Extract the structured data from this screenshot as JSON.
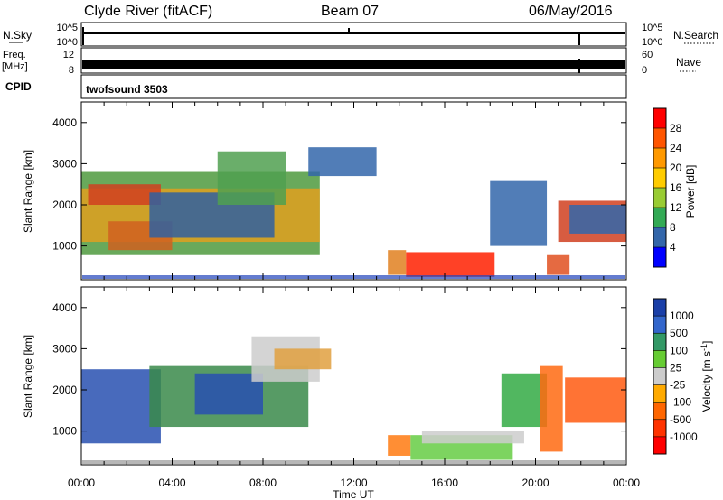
{
  "header": {
    "site": "Clyde River (fitACF)",
    "beam": "Beam 07",
    "date": "06/May/2016"
  },
  "top_panels": {
    "nsky_label": "N.Sky",
    "nsky_ticks": [
      "10^5",
      "10^0"
    ],
    "nsearch_label": "N.Search",
    "nsearch_ticks": [
      "10^5",
      "10^0"
    ],
    "freq_label": "Freq.",
    "freq_unit": "[MHz]",
    "freq_ticks": [
      "12",
      "8"
    ],
    "nave_label": "Nave",
    "nave_ticks": [
      "60",
      "0"
    ],
    "cpid_label": "CPID",
    "cpid_value": "twofsound 3503"
  },
  "chart_data": [
    {
      "type": "heatmap",
      "name": "power",
      "ylabel": "Slant Range [km]",
      "xlabel": "",
      "x_range_hours": [
        0,
        24
      ],
      "ylim": [
        180,
        4500
      ],
      "yticks": [
        1000,
        2000,
        3000,
        4000
      ],
      "colorbar_label": "Power [dB]",
      "colorbar_ticks": [
        "28",
        "24",
        "20",
        "16",
        "12",
        "8",
        "4"
      ],
      "colorbar_colors": [
        "#ff0000",
        "#ff5500",
        "#ff9900",
        "#ffcc00",
        "#99cc33",
        "#33aa55",
        "#3366aa",
        "#0000ff"
      ],
      "regions": [
        {
          "t0": 0.0,
          "t1": 10.5,
          "r0": 800,
          "r1": 2800,
          "fill": "#4f9a3e"
        },
        {
          "t0": 0.0,
          "t1": 10.5,
          "r0": 1100,
          "r1": 2400,
          "fill": "#e0a020"
        },
        {
          "t0": 0.3,
          "t1": 3.5,
          "r0": 2000,
          "r1": 2500,
          "fill": "#d04020"
        },
        {
          "t0": 1.2,
          "t1": 4.0,
          "r0": 900,
          "r1": 1600,
          "fill": "#d06020"
        },
        {
          "t0": 3.0,
          "t1": 8.5,
          "r0": 1200,
          "r1": 2300,
          "fill": "#3060a0"
        },
        {
          "t0": 6.0,
          "t1": 9.0,
          "r0": 2000,
          "r1": 3300,
          "fill": "#50a050"
        },
        {
          "t0": 10.0,
          "t1": 13.0,
          "r0": 2700,
          "r1": 3400,
          "fill": "#3366aa"
        },
        {
          "t0": 13.5,
          "t1": 14.3,
          "r0": 300,
          "r1": 900,
          "fill": "#e08020"
        },
        {
          "t0": 14.3,
          "t1": 18.2,
          "r0": 250,
          "r1": 850,
          "fill": "#ff2000"
        },
        {
          "t0": 18.0,
          "t1": 20.5,
          "r0": 1000,
          "r1": 2600,
          "fill": "#3366aa"
        },
        {
          "t0": 20.5,
          "t1": 21.5,
          "r0": 300,
          "r1": 800,
          "fill": "#e05020"
        },
        {
          "t0": 21.0,
          "t1": 24.0,
          "r0": 1100,
          "r1": 2100,
          "fill": "#d04020"
        },
        {
          "t0": 21.5,
          "t1": 24.0,
          "r0": 1300,
          "r1": 2000,
          "fill": "#3366aa"
        }
      ]
    },
    {
      "type": "heatmap",
      "name": "velocity",
      "ylabel": "Slant Range [km]",
      "xlabel": "Time UT",
      "x_range_hours": [
        0,
        24
      ],
      "xticks": [
        "00:00",
        "04:00",
        "08:00",
        "12:00",
        "16:00",
        "20:00",
        "00:00"
      ],
      "ylim": [
        180,
        4500
      ],
      "yticks": [
        1000,
        2000,
        3000,
        4000
      ],
      "colorbar_label": "Velocity [m s",
      "colorbar_unit_exp": "-1",
      "colorbar_unit_tail": "]",
      "colorbar_ticks": [
        "1000",
        "500",
        "100",
        "25",
        "-25",
        "-100",
        "-500",
        "-1000"
      ],
      "colorbar_colors": [
        "#1a3fa8",
        "#3366cc",
        "#339966",
        "#66cc33",
        "#cccccc",
        "#ffaa00",
        "#ff6600",
        "#ff3300",
        "#ff0000"
      ],
      "regions": [
        {
          "t0": 0.0,
          "t1": 3.5,
          "r0": 700,
          "r1": 2500,
          "fill": "#2850b0"
        },
        {
          "t0": 3.0,
          "t1": 10.0,
          "r0": 1100,
          "r1": 2600,
          "fill": "#3a8a4a"
        },
        {
          "t0": 5.0,
          "t1": 8.0,
          "r0": 1400,
          "r1": 2400,
          "fill": "#2850b0"
        },
        {
          "t0": 7.5,
          "t1": 10.5,
          "r0": 2200,
          "r1": 3300,
          "fill": "#cccccc"
        },
        {
          "t0": 8.5,
          "t1": 11.0,
          "r0": 2500,
          "r1": 3000,
          "fill": "#e0a040"
        },
        {
          "t0": 13.5,
          "t1": 14.5,
          "r0": 400,
          "r1": 900,
          "fill": "#ff7a10"
        },
        {
          "t0": 14.5,
          "t1": 19.0,
          "r0": 300,
          "r1": 900,
          "fill": "#66cc44"
        },
        {
          "t0": 15.0,
          "t1": 19.5,
          "r0": 700,
          "r1": 1000,
          "fill": "#cccccc"
        },
        {
          "t0": 18.5,
          "t1": 20.5,
          "r0": 1100,
          "r1": 2400,
          "fill": "#33aa44"
        },
        {
          "t0": 20.2,
          "t1": 21.2,
          "r0": 500,
          "r1": 2600,
          "fill": "#ff6a10"
        },
        {
          "t0": 21.3,
          "t1": 24.0,
          "r0": 1200,
          "r1": 2300,
          "fill": "#ff5a10"
        }
      ]
    }
  ]
}
